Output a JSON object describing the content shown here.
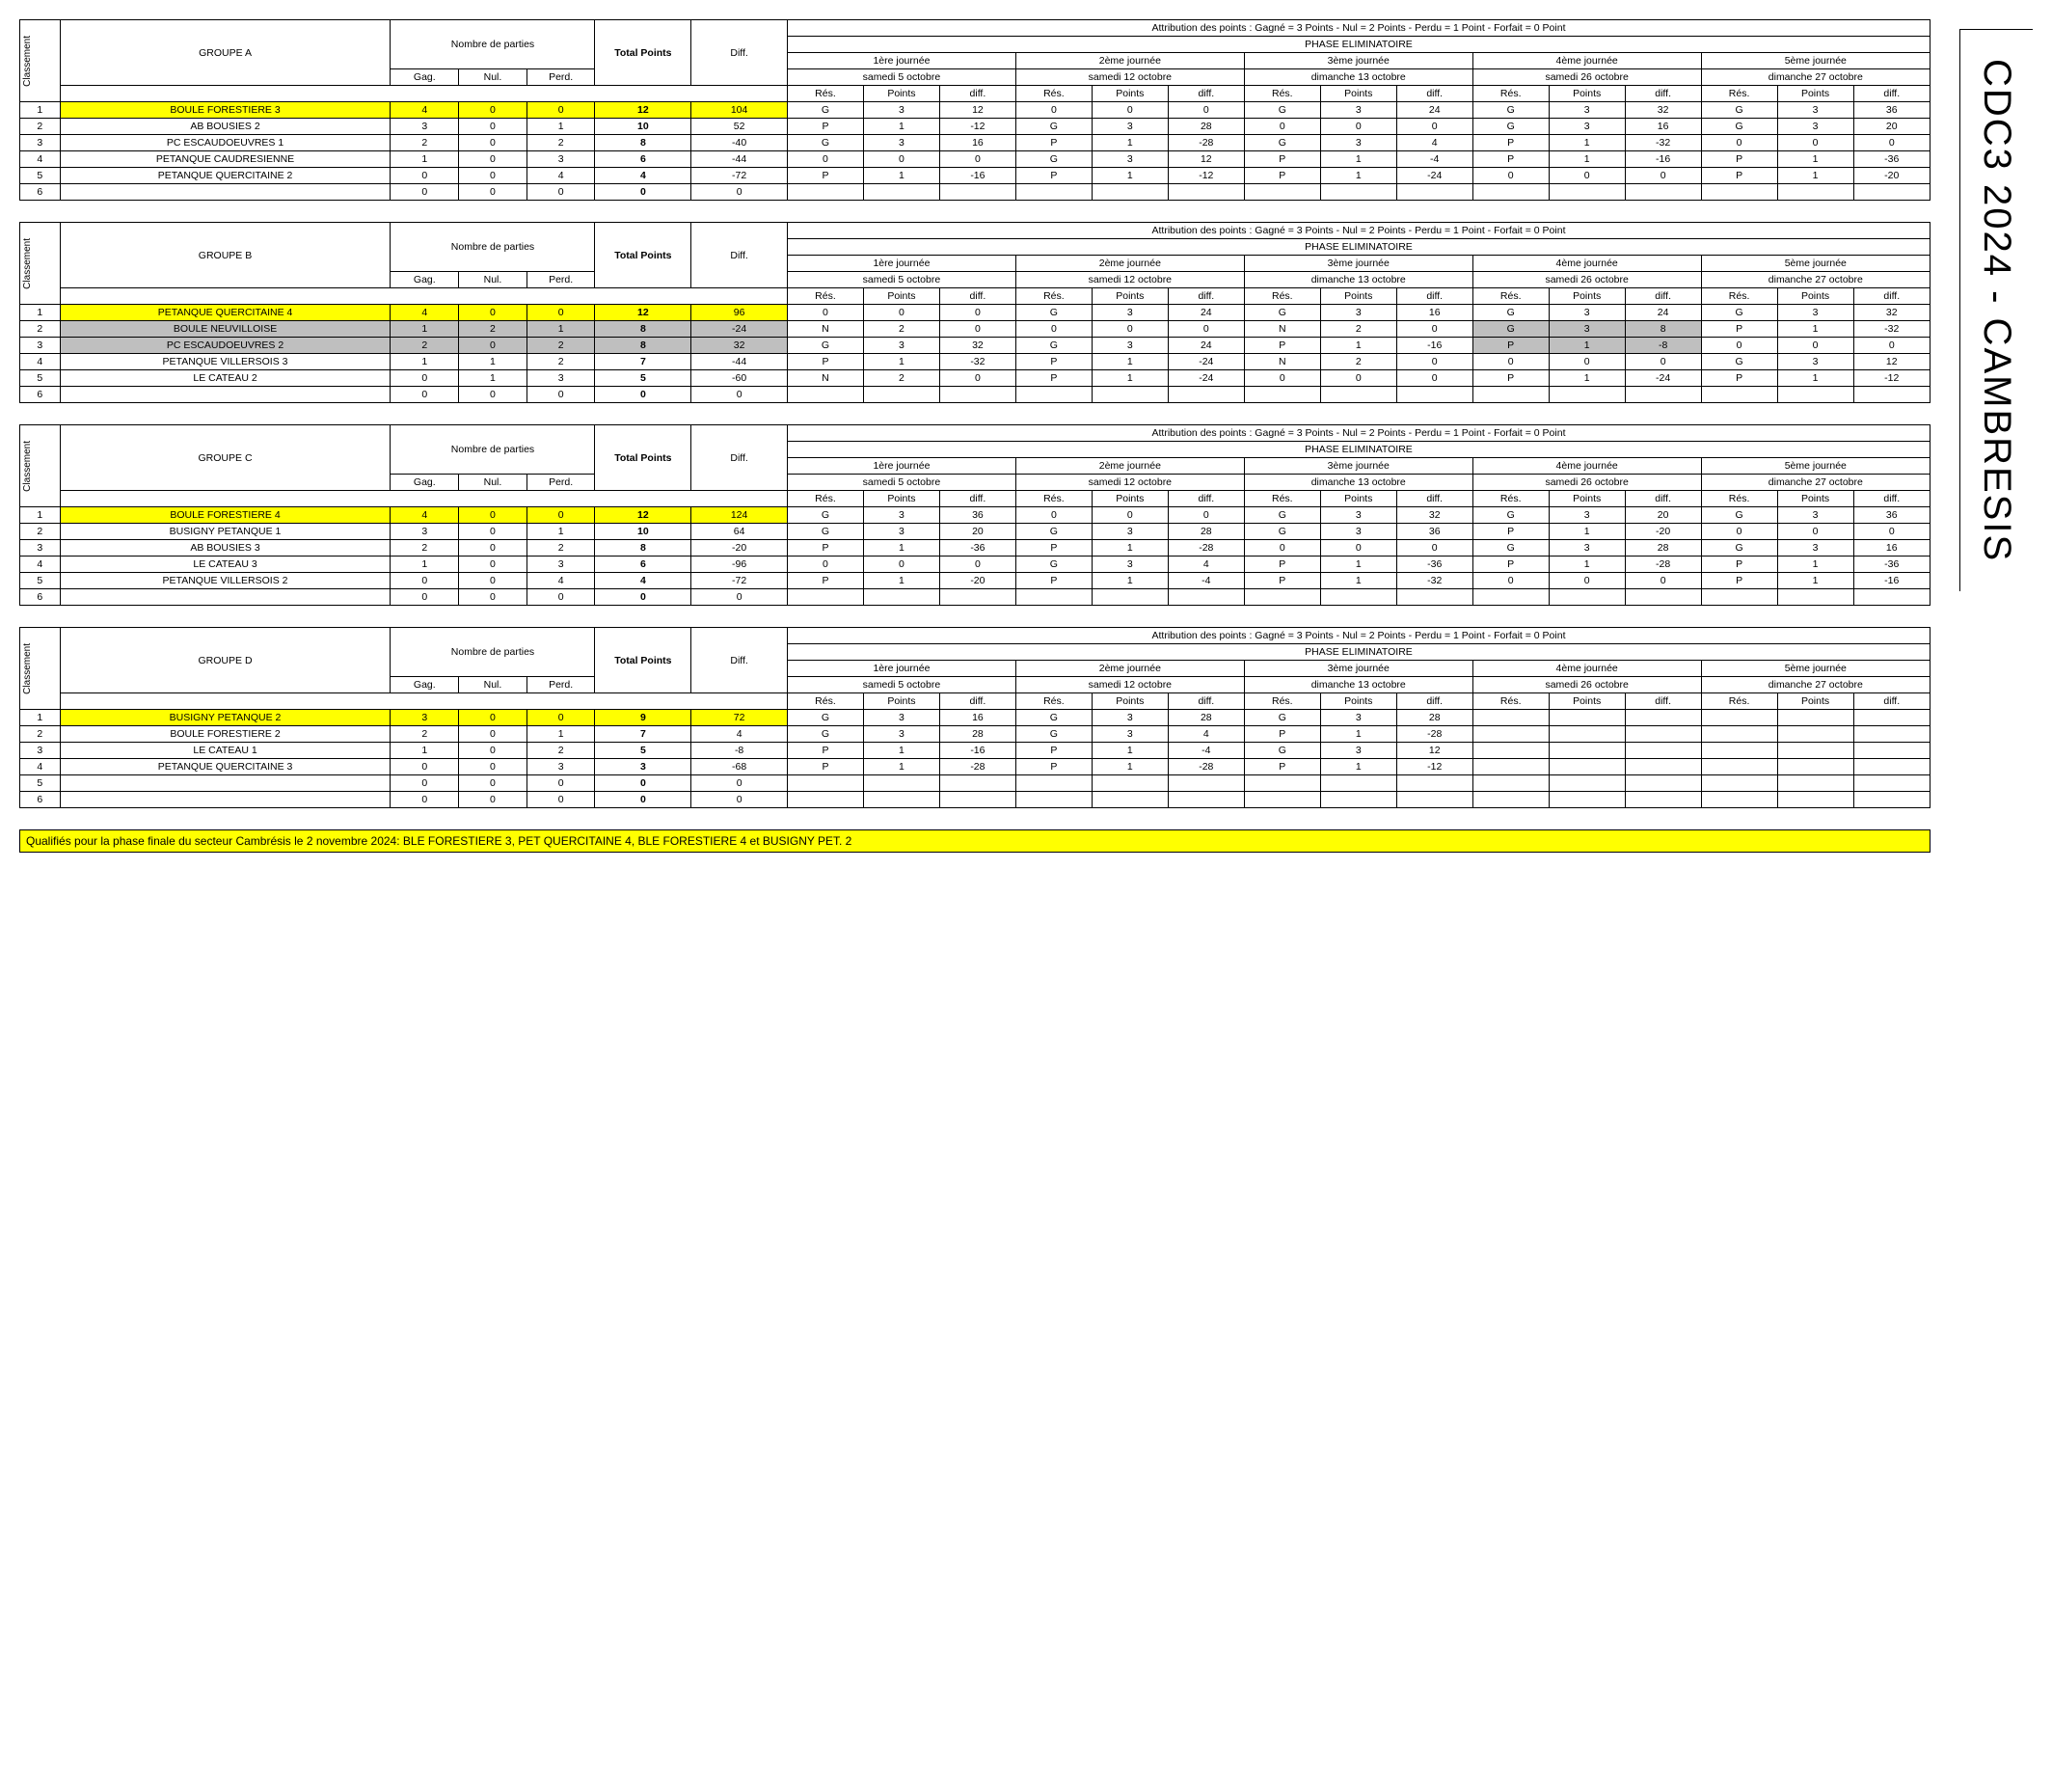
{
  "side_title": "CDC3 2024 - CAMBRESIS",
  "footer": "Qualifiés pour la phase finale du secteur Cambrésis le 2 novembre 2024: BLE FORESTIERE 3, PET QUERCITAINE 4, BLE FORESTIERE 4 et BUSIGNY PET. 2",
  "headers": {
    "classement": "Classement",
    "nombre": "Nombre de parties",
    "gag": "Gag.",
    "nul": "Nul.",
    "perd": "Perd.",
    "total": "Total Points",
    "diff": "Diff.",
    "attribution": "Attribution des points : Gagné = 3 Points - Nul = 2 Points - Perdu = 1 Point - Forfait = 0 Point",
    "phase": "PHASE ELIMINATOIRE",
    "journees": [
      "1ère journée",
      "2ème journée",
      "3ème journée",
      "4ème journée",
      "5ème journée"
    ],
    "dates": [
      "samedi 5 octobre",
      "samedi 12 octobre",
      "dimanche 13 octobre",
      "samedi 26 octobre",
      "dimanche 27 octobre"
    ],
    "res": "Rés.",
    "points": "Points",
    "diff2": "diff."
  },
  "groups": [
    {
      "name": "GROUPE A",
      "rows": [
        {
          "rank": 1,
          "team": "BOULE FORESTIERE 3",
          "hl": "yellow",
          "g": 4,
          "n": 0,
          "p": 0,
          "tot": 12,
          "diff": 104,
          "j": [
            [
              "G",
              3,
              12
            ],
            [
              "0",
              0,
              0
            ],
            [
              "G",
              3,
              24
            ],
            [
              "G",
              3,
              32
            ],
            [
              "G",
              3,
              36
            ]
          ]
        },
        {
          "rank": 2,
          "team": "AB BOUSIES 2",
          "g": 3,
          "n": 0,
          "p": 1,
          "tot": 10,
          "diff": 52,
          "j": [
            [
              "P",
              1,
              -12
            ],
            [
              "G",
              3,
              28
            ],
            [
              "0",
              0,
              0
            ],
            [
              "G",
              3,
              16
            ],
            [
              "G",
              3,
              20
            ]
          ]
        },
        {
          "rank": 3,
          "team": "PC ESCAUDOEUVRES 1",
          "g": 2,
          "n": 0,
          "p": 2,
          "tot": 8,
          "diff": -40,
          "j": [
            [
              "G",
              3,
              16
            ],
            [
              "P",
              1,
              -28
            ],
            [
              "G",
              3,
              4
            ],
            [
              "P",
              1,
              -32
            ],
            [
              "0",
              0,
              0
            ]
          ]
        },
        {
          "rank": 4,
          "team": "PETANQUE CAUDRESIENNE",
          "g": 1,
          "n": 0,
          "p": 3,
          "tot": 6,
          "diff": -44,
          "j": [
            [
              "0",
              0,
              0
            ],
            [
              "G",
              3,
              12
            ],
            [
              "P",
              1,
              -4
            ],
            [
              "P",
              1,
              -16
            ],
            [
              "P",
              1,
              -36
            ]
          ]
        },
        {
          "rank": 5,
          "team": "PETANQUE QUERCITAINE 2",
          "g": 0,
          "n": 0,
          "p": 4,
          "tot": 4,
          "diff": -72,
          "j": [
            [
              "P",
              1,
              -16
            ],
            [
              "P",
              1,
              -12
            ],
            [
              "P",
              1,
              -24
            ],
            [
              "0",
              0,
              0
            ],
            [
              "P",
              1,
              -20
            ]
          ]
        },
        {
          "rank": 6,
          "team": "",
          "g": 0,
          "n": 0,
          "p": 0,
          "tot": 0,
          "diff": 0,
          "j": [
            [
              "",
              "",
              ""
            ],
            [
              "",
              "",
              ""
            ],
            [
              "",
              "",
              ""
            ],
            [
              "",
              "",
              ""
            ],
            [
              "",
              "",
              ""
            ]
          ]
        }
      ]
    },
    {
      "name": "GROUPE B",
      "rows": [
        {
          "rank": 1,
          "team": "PETANQUE QUERCITAINE 4",
          "hl": "yellow",
          "g": 4,
          "n": 0,
          "p": 0,
          "tot": 12,
          "diff": 96,
          "j": [
            [
              "0",
              0,
              0
            ],
            [
              "G",
              3,
              24
            ],
            [
              "G",
              3,
              16
            ],
            [
              "G",
              3,
              24
            ],
            [
              "G",
              3,
              32
            ]
          ]
        },
        {
          "rank": 2,
          "team": "BOULE NEUVILLOISE",
          "hl": "grey",
          "g": 1,
          "n": 2,
          "p": 1,
          "tot": 8,
          "diff": -24,
          "j": [
            [
              "N",
              2,
              0
            ],
            [
              "0",
              0,
              0
            ],
            [
              "N",
              2,
              0
            ],
            [
              "G",
              3,
              8,
              "grey"
            ],
            [
              "P",
              1,
              -32
            ]
          ]
        },
        {
          "rank": 3,
          "team": "PC ESCAUDOEUVRES 2",
          "hl": "grey",
          "g": 2,
          "n": 0,
          "p": 2,
          "tot": 8,
          "diff": 32,
          "j": [
            [
              "G",
              3,
              32
            ],
            [
              "G",
              3,
              24
            ],
            [
              "P",
              1,
              -16
            ],
            [
              "P",
              1,
              -8,
              "grey"
            ],
            [
              "0",
              0,
              0
            ]
          ]
        },
        {
          "rank": 4,
          "team": "PETANQUE VILLERSOIS 3",
          "g": 1,
          "n": 1,
          "p": 2,
          "tot": 7,
          "diff": -44,
          "j": [
            [
              "P",
              1,
              -32
            ],
            [
              "P",
              1,
              -24
            ],
            [
              "N",
              2,
              0
            ],
            [
              "0",
              0,
              0
            ],
            [
              "G",
              3,
              12
            ]
          ]
        },
        {
          "rank": 5,
          "team": "LE CATEAU 2",
          "g": 0,
          "n": 1,
          "p": 3,
          "tot": 5,
          "diff": -60,
          "j": [
            [
              "N",
              2,
              0
            ],
            [
              "P",
              1,
              -24
            ],
            [
              "0",
              0,
              0
            ],
            [
              "P",
              1,
              -24
            ],
            [
              "P",
              1,
              -12
            ]
          ]
        },
        {
          "rank": 6,
          "team": "",
          "g": 0,
          "n": 0,
          "p": 0,
          "tot": 0,
          "diff": 0,
          "j": [
            [
              "",
              "",
              ""
            ],
            [
              "",
              "",
              ""
            ],
            [
              "",
              "",
              ""
            ],
            [
              "",
              "",
              ""
            ],
            [
              "",
              "",
              ""
            ]
          ]
        }
      ]
    },
    {
      "name": "GROUPE C",
      "rows": [
        {
          "rank": 1,
          "team": "BOULE FORESTIERE 4",
          "hl": "yellow",
          "g": 4,
          "n": 0,
          "p": 0,
          "tot": 12,
          "diff": 124,
          "j": [
            [
              "G",
              3,
              36
            ],
            [
              "0",
              0,
              0
            ],
            [
              "G",
              3,
              32
            ],
            [
              "G",
              3,
              20
            ],
            [
              "G",
              3,
              36
            ]
          ]
        },
        {
          "rank": 2,
          "team": "BUSIGNY PETANQUE 1",
          "g": 3,
          "n": 0,
          "p": 1,
          "tot": 10,
          "diff": 64,
          "j": [
            [
              "G",
              3,
              20
            ],
            [
              "G",
              3,
              28
            ],
            [
              "G",
              3,
              36
            ],
            [
              "P",
              1,
              -20
            ],
            [
              "0",
              0,
              0
            ]
          ]
        },
        {
          "rank": 3,
          "team": "AB BOUSIES 3",
          "g": 2,
          "n": 0,
          "p": 2,
          "tot": 8,
          "diff": -20,
          "j": [
            [
              "P",
              1,
              -36
            ],
            [
              "P",
              1,
              -28
            ],
            [
              "0",
              0,
              0
            ],
            [
              "G",
              3,
              28
            ],
            [
              "G",
              3,
              16
            ]
          ]
        },
        {
          "rank": 4,
          "team": "LE CATEAU 3",
          "g": 1,
          "n": 0,
          "p": 3,
          "tot": 6,
          "diff": -96,
          "j": [
            [
              "0",
              0,
              0
            ],
            [
              "G",
              3,
              4
            ],
            [
              "P",
              1,
              -36
            ],
            [
              "P",
              1,
              -28
            ],
            [
              "P",
              1,
              -36
            ]
          ]
        },
        {
          "rank": 5,
          "team": "PETANQUE VILLERSOIS 2",
          "g": 0,
          "n": 0,
          "p": 4,
          "tot": 4,
          "diff": -72,
          "j": [
            [
              "P",
              1,
              -20
            ],
            [
              "P",
              1,
              -4
            ],
            [
              "P",
              1,
              -32
            ],
            [
              "0",
              0,
              0
            ],
            [
              "P",
              1,
              -16
            ]
          ]
        },
        {
          "rank": 6,
          "team": "",
          "g": 0,
          "n": 0,
          "p": 0,
          "tot": 0,
          "diff": 0,
          "j": [
            [
              "",
              "",
              ""
            ],
            [
              "",
              "",
              ""
            ],
            [
              "",
              "",
              ""
            ],
            [
              "",
              "",
              ""
            ],
            [
              "",
              "",
              ""
            ]
          ]
        }
      ]
    },
    {
      "name": "GROUPE D",
      "rows": [
        {
          "rank": 1,
          "team": "BUSIGNY PETANQUE 2",
          "hl": "yellow",
          "g": 3,
          "n": 0,
          "p": 0,
          "tot": 9,
          "diff": 72,
          "j": [
            [
              "G",
              3,
              16
            ],
            [
              "G",
              3,
              28
            ],
            [
              "G",
              3,
              28
            ],
            [
              "",
              "",
              ""
            ],
            [
              "",
              "",
              ""
            ]
          ]
        },
        {
          "rank": 2,
          "team": "BOULE FORESTIERE 2",
          "g": 2,
          "n": 0,
          "p": 1,
          "tot": 7,
          "diff": 4,
          "j": [
            [
              "G",
              3,
              28
            ],
            [
              "G",
              3,
              4
            ],
            [
              "P",
              1,
              -28
            ],
            [
              "",
              "",
              ""
            ],
            [
              "",
              "",
              ""
            ]
          ]
        },
        {
          "rank": 3,
          "team": "LE CATEAU 1",
          "g": 1,
          "n": 0,
          "p": 2,
          "tot": 5,
          "diff": -8,
          "j": [
            [
              "P",
              1,
              -16
            ],
            [
              "P",
              1,
              -4
            ],
            [
              "G",
              3,
              12
            ],
            [
              "",
              "",
              ""
            ],
            [
              "",
              "",
              ""
            ]
          ]
        },
        {
          "rank": 4,
          "team": "PETANQUE QUERCITAINE 3",
          "g": 0,
          "n": 0,
          "p": 3,
          "tot": 3,
          "diff": -68,
          "j": [
            [
              "P",
              1,
              -28
            ],
            [
              "P",
              1,
              -28
            ],
            [
              "P",
              1,
              -12
            ],
            [
              "",
              "",
              ""
            ],
            [
              "",
              "",
              ""
            ]
          ]
        },
        {
          "rank": 5,
          "team": "",
          "g": 0,
          "n": 0,
          "p": 0,
          "tot": 0,
          "diff": 0,
          "j": [
            [
              "",
              "",
              ""
            ],
            [
              "",
              "",
              ""
            ],
            [
              "",
              "",
              ""
            ],
            [
              "",
              "",
              ""
            ],
            [
              "",
              "",
              ""
            ]
          ]
        },
        {
          "rank": 6,
          "team": "",
          "g": 0,
          "n": 0,
          "p": 0,
          "tot": 0,
          "diff": 0,
          "j": [
            [
              "",
              "",
              ""
            ],
            [
              "",
              "",
              ""
            ],
            [
              "",
              "",
              ""
            ],
            [
              "",
              "",
              ""
            ],
            [
              "",
              "",
              ""
            ]
          ]
        }
      ]
    }
  ]
}
